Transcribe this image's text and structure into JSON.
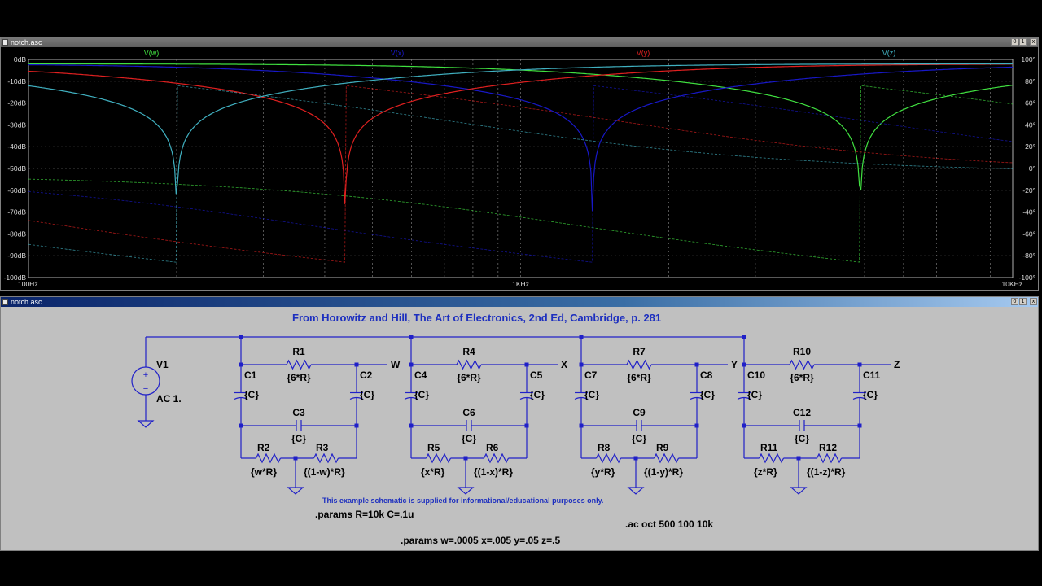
{
  "plot_window": {
    "title": "notch.asc",
    "buttons": {
      "minimize": "0",
      "restore": "1",
      "close": "x"
    }
  },
  "schematic_window": {
    "title": "notch.asc",
    "buttons": {
      "minimize": "0",
      "restore": "1",
      "close": "x"
    }
  },
  "chart_data": {
    "type": "line",
    "x_scale": "log",
    "xlim": [
      "100Hz",
      "10KHz"
    ],
    "x_tick_labels": [
      "100Hz",
      "1KHz",
      "10KHz"
    ],
    "y_left_tick_labels": [
      "0dB",
      "-10dB",
      "-20dB",
      "-30dB",
      "-40dB",
      "-50dB",
      "-60dB",
      "-70dB",
      "-80dB",
      "-90dB",
      "-100dB"
    ],
    "y_right_tick_labels": [
      "100°",
      "80°",
      "60°",
      "40°",
      "20°",
      "0°",
      "-20°",
      "-40°",
      "-60°",
      "-80°",
      "-100°"
    ],
    "ylim_left": [
      -100,
      0
    ],
    "ylim_right": [
      -100,
      100
    ],
    "grid": true,
    "series": [
      {
        "name": "V(w)",
        "color": "#40e040",
        "notch_freq_hz": 4900
      },
      {
        "name": "V(x)",
        "color": "#1818c8",
        "notch_freq_hz": 1400
      },
      {
        "name": "V(y)",
        "color": "#e02020",
        "notch_freq_hz": 440
      },
      {
        "name": "V(z)",
        "color": "#40b0c0",
        "notch_freq_hz": 200
      }
    ]
  },
  "schematic": {
    "header": "From Horowitz and Hill, The Art of Electronics, 2nd Ed, Cambridge,  p. 281",
    "source": {
      "name": "V1",
      "value": "AC 1."
    },
    "nodes": [
      "W",
      "X",
      "Y",
      "Z"
    ],
    "sections": [
      {
        "r_top": "R1",
        "r_top_val": "{6*R}",
        "c_left": "C1",
        "c_right": "C2",
        "c_mid": "C3",
        "r_left": "R2",
        "r_left_val": "{w*R}",
        "r_right": "R3",
        "r_right_val": "{(1-w)*R}",
        "c_val": "{C}"
      },
      {
        "r_top": "R4",
        "r_top_val": "{6*R}",
        "c_left": "C4",
        "c_right": "C5",
        "c_mid": "C6",
        "r_left": "R5",
        "r_left_val": "{x*R}",
        "r_right": "R6",
        "r_right_val": "{(1-x)*R}",
        "c_val": "{C}"
      },
      {
        "r_top": "R7",
        "r_top_val": "{6*R}",
        "c_left": "C7",
        "c_right": "C8",
        "c_mid": "C9",
        "r_left": "R8",
        "r_left_val": "{y*R}",
        "r_right": "R9",
        "r_right_val": "{(1-y)*R}",
        "c_val": "{C}"
      },
      {
        "r_top": "R10",
        "r_top_val": "{6*R}",
        "c_left": "C10",
        "c_right": "C11",
        "c_mid": "C12",
        "r_left": "R11",
        "r_left_val": "{z*R}",
        "r_right": "R12",
        "r_right_val": "{(1-z)*R}",
        "c_val": "{C}"
      }
    ],
    "disclaimer": "This example schematic is supplied for informational/educational purposes only.",
    "params1": ".params R=10k C=.1u",
    "ac_cmd": ".ac oct 500 100 10k",
    "params2": ".params w=.0005 x=.005 y=.05 z=.5"
  }
}
